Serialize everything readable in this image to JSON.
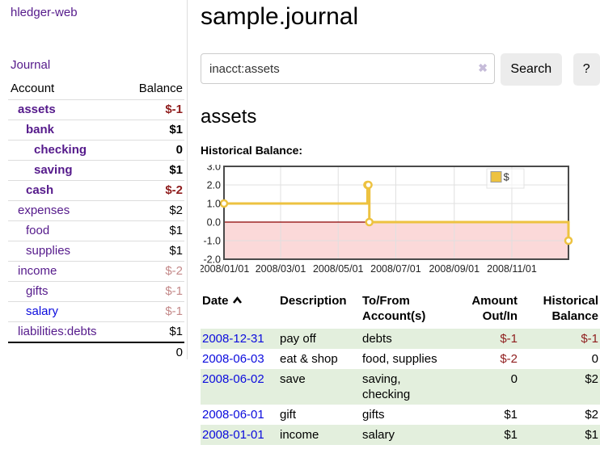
{
  "app": {
    "title": "hledger-web"
  },
  "sidebar": {
    "nav_journal": "Journal",
    "accounts_table": {
      "headers": {
        "account": "Account",
        "balance": "Balance"
      },
      "rows": [
        {
          "account": "assets",
          "indent": 1,
          "balance": "$-1",
          "negative": "strong",
          "bold": true,
          "link_color": "purple"
        },
        {
          "account": "bank",
          "indent": 2,
          "balance": "$1",
          "negative": "none",
          "bold": true,
          "link_color": "purple"
        },
        {
          "account": "checking",
          "indent": 3,
          "balance": "0",
          "negative": "none",
          "bold": true,
          "link_color": "purple"
        },
        {
          "account": "saving",
          "indent": 3,
          "balance": "$1",
          "negative": "none",
          "bold": true,
          "link_color": "purple"
        },
        {
          "account": "cash",
          "indent": 2,
          "balance": "$-2",
          "negative": "strong",
          "bold": true,
          "link_color": "purple"
        },
        {
          "account": "expenses",
          "indent": 1,
          "balance": "$2",
          "negative": "none",
          "bold": false,
          "link_color": "purple"
        },
        {
          "account": "food",
          "indent": 2,
          "balance": "$1",
          "negative": "none",
          "bold": false,
          "link_color": "purple"
        },
        {
          "account": "supplies",
          "indent": 2,
          "balance": "$1",
          "negative": "none",
          "bold": false,
          "link_color": "purple"
        },
        {
          "account": "income",
          "indent": 1,
          "balance": "$-2",
          "negative": "soft",
          "bold": false,
          "link_color": "purple"
        },
        {
          "account": "gifts",
          "indent": 2,
          "balance": "$-1",
          "negative": "soft",
          "bold": false,
          "link_color": "purple"
        },
        {
          "account": "salary",
          "indent": 2,
          "balance": "$-1",
          "negative": "soft",
          "bold": false,
          "link_color": "blue"
        },
        {
          "account": "liabilities:debts",
          "indent": 1,
          "balance": "$1",
          "negative": "none",
          "bold": false,
          "link_color": "purple"
        }
      ],
      "total": "0"
    }
  },
  "main": {
    "title": "sample.journal",
    "search": {
      "value": "inacct:assets",
      "clear_icon": "✖",
      "search_button": "Search",
      "help_button": "?"
    },
    "account_heading": "assets",
    "chart_label": "Historical Balance:",
    "register": {
      "headers": {
        "date": "Date",
        "sort": "ascending",
        "description": "Description",
        "tofrom_line1": "To/From",
        "tofrom_line2": "Account(s)",
        "amount_line1": "Amount",
        "amount_line2": "Out/In",
        "historical_line1": "Historical",
        "historical_line2": "Balance"
      },
      "rows": [
        {
          "date": "2008-12-31",
          "description": "pay off",
          "accounts": "debts",
          "amount": "$-1",
          "amount_negative": true,
          "balance": "$-1",
          "balance_negative": true
        },
        {
          "date": "2008-06-03",
          "description": "eat & shop",
          "accounts": "food, supplies",
          "amount": "$-2",
          "amount_negative": true,
          "balance": "0",
          "balance_negative": false
        },
        {
          "date": "2008-06-02",
          "description": "save",
          "accounts": "saving, checking",
          "amount": "0",
          "amount_negative": false,
          "balance": "$2",
          "balance_negative": false
        },
        {
          "date": "2008-06-01",
          "description": "gift",
          "accounts": "gifts",
          "amount": "$1",
          "amount_negative": false,
          "balance": "$2",
          "balance_negative": false
        },
        {
          "date": "2008-01-01",
          "description": "income",
          "accounts": "salary",
          "amount": "$1",
          "amount_negative": false,
          "balance": "$1",
          "balance_negative": false
        }
      ]
    }
  },
  "chart_data": {
    "type": "line",
    "step": true,
    "title": "Historical Balance:",
    "series": [
      {
        "name": "$",
        "points": [
          {
            "date": "2008/01/01",
            "value": 1
          },
          {
            "date": "2008/06/01",
            "value": 2
          },
          {
            "date": "2008/06/02",
            "value": 2
          },
          {
            "date": "2008/06/03",
            "value": 0
          },
          {
            "date": "2008/12/31",
            "value": -1
          }
        ]
      }
    ],
    "x_ticks": [
      "2008/01/01",
      "2008/03/01",
      "2008/05/01",
      "2008/07/01",
      "2008/09/01",
      "2008/11/01"
    ],
    "y_ticks": [
      3.0,
      2.0,
      1.0,
      0.0,
      -1.0,
      -2.0
    ],
    "ylim": [
      -2,
      3
    ],
    "xlim": [
      "2008/01/01",
      "2008/12/31"
    ],
    "grid": true,
    "legend": "$",
    "legend_position": "top-right",
    "line_color": "#edc240",
    "negative_region_color": "#fbd9d9",
    "zero_line_color": "#8b0000"
  },
  "colors": {
    "link_purple": "#551a8b",
    "link_blue": "#0b0bdd",
    "negative_strong": "#8f1d1d",
    "negative_soft": "#c48989",
    "row_stripe_green": "#e3efdd",
    "button_gray": "#ececec",
    "chart_gold": "#edc240"
  }
}
